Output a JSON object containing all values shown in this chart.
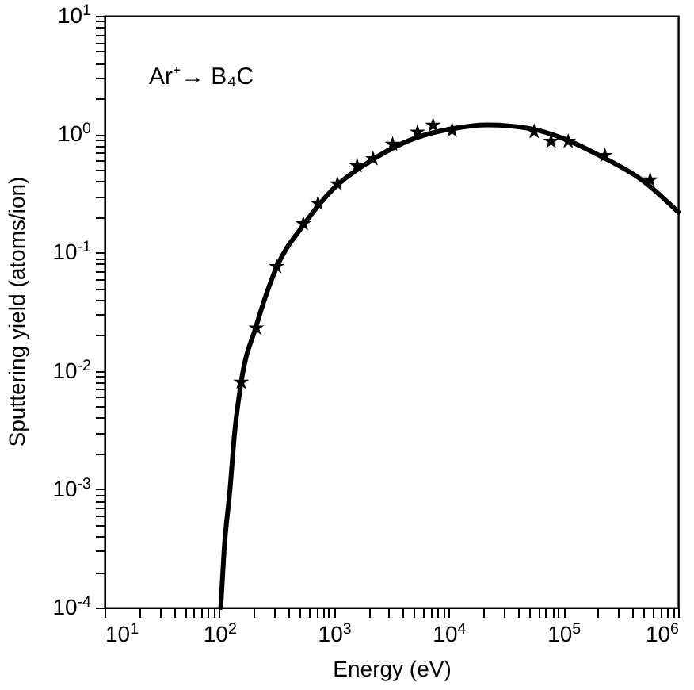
{
  "chart_data": {
    "type": "scatter",
    "xlabel": "Energy (eV)",
    "ylabel": "Sputtering yield (atoms/ion)",
    "annotations": [
      "Ar⁺→ B₄C"
    ],
    "log": "xy",
    "grid": false,
    "xlim": [
      10,
      1000000
    ],
    "ylim": [
      0.0001,
      10
    ],
    "xticks": [
      {
        "value": 10,
        "label": "10$^{1}$"
      },
      {
        "value": 20,
        "label": null
      },
      {
        "value": 30,
        "label": null
      },
      {
        "value": 40,
        "label": null
      },
      {
        "value": 50,
        "label": null
      },
      {
        "value": 60,
        "label": null
      },
      {
        "value": 70,
        "label": null
      },
      {
        "value": 80,
        "label": null
      },
      {
        "value": 90,
        "label": null
      },
      {
        "value": 100,
        "label": "10$^{2}$"
      },
      {
        "value": 200,
        "label": null
      },
      {
        "value": 300,
        "label": null
      },
      {
        "value": 400,
        "label": null
      },
      {
        "value": 500,
        "label": null
      },
      {
        "value": 600,
        "label": null
      },
      {
        "value": 700,
        "label": null
      },
      {
        "value": 800,
        "label": null
      },
      {
        "value": 900,
        "label": null
      },
      {
        "value": 1000,
        "label": "10$^{3}$"
      },
      {
        "value": 2000,
        "label": null
      },
      {
        "value": 3000,
        "label": null
      },
      {
        "value": 4000,
        "label": null
      },
      {
        "value": 5000,
        "label": null
      },
      {
        "value": 6000,
        "label": null
      },
      {
        "value": 7000,
        "label": null
      },
      {
        "value": 8000,
        "label": null
      },
      {
        "value": 9000,
        "label": null
      },
      {
        "value": 10000,
        "label": "10$^{4}$"
      },
      {
        "value": 20000,
        "label": null
      },
      {
        "value": 30000,
        "label": null
      },
      {
        "value": 40000,
        "label": null
      },
      {
        "value": 50000,
        "label": null
      },
      {
        "value": 60000,
        "label": null
      },
      {
        "value": 70000,
        "label": null
      },
      {
        "value": 80000,
        "label": null
      },
      {
        "value": 90000,
        "label": null
      },
      {
        "value": 100000,
        "label": "10$^{5}$"
      },
      {
        "value": 200000,
        "label": null
      },
      {
        "value": 300000,
        "label": null
      },
      {
        "value": 400000,
        "label": null
      },
      {
        "value": 500000,
        "label": null
      },
      {
        "value": 600000,
        "label": null
      },
      {
        "value": 700000,
        "label": null
      },
      {
        "value": 800000,
        "label": null
      },
      {
        "value": 900000,
        "label": null
      },
      {
        "value": 1000000,
        "label": "10$^{6}$"
      }
    ],
    "yticks": [
      {
        "value": 0.0001,
        "label": "10$^{-4}$"
      },
      {
        "value": 0.0002,
        "label": null
      },
      {
        "value": 0.0003,
        "label": null
      },
      {
        "value": 0.0004,
        "label": null
      },
      {
        "value": 0.0005,
        "label": null
      },
      {
        "value": 0.0006,
        "label": null
      },
      {
        "value": 0.0007,
        "label": null
      },
      {
        "value": 0.0008,
        "label": null
      },
      {
        "value": 0.0009,
        "label": null
      },
      {
        "value": 0.001,
        "label": "10$^{-3}$"
      },
      {
        "value": 0.002,
        "label": null
      },
      {
        "value": 0.003,
        "label": null
      },
      {
        "value": 0.004,
        "label": null
      },
      {
        "value": 0.005,
        "label": null
      },
      {
        "value": 0.006,
        "label": null
      },
      {
        "value": 0.007,
        "label": null
      },
      {
        "value": 0.008,
        "label": null
      },
      {
        "value": 0.009,
        "label": null
      },
      {
        "value": 0.01,
        "label": "10$^{-2}$"
      },
      {
        "value": 0.02,
        "label": null
      },
      {
        "value": 0.03,
        "label": null
      },
      {
        "value": 0.04,
        "label": null
      },
      {
        "value": 0.05,
        "label": null
      },
      {
        "value": 0.06,
        "label": null
      },
      {
        "value": 0.07,
        "label": null
      },
      {
        "value": 0.08,
        "label": null
      },
      {
        "value": 0.09,
        "label": null
      },
      {
        "value": 0.1,
        "label": "10$^{-1}$"
      },
      {
        "value": 0.2,
        "label": null
      },
      {
        "value": 0.3,
        "label": null
      },
      {
        "value": 0.4,
        "label": null
      },
      {
        "value": 0.5,
        "label": null
      },
      {
        "value": 0.6,
        "label": null
      },
      {
        "value": 0.7,
        "label": null
      },
      {
        "value": 0.8,
        "label": null
      },
      {
        "value": 0.9,
        "label": null
      },
      {
        "value": 1,
        "label": "10$^{0}$"
      },
      {
        "value": 2,
        "label": null
      },
      {
        "value": 3,
        "label": null
      },
      {
        "value": 4,
        "label": null
      },
      {
        "value": 5,
        "label": null
      },
      {
        "value": 6,
        "label": null
      },
      {
        "value": 7,
        "label": null
      },
      {
        "value": 8,
        "label": null
      },
      {
        "value": 9,
        "label": null
      },
      {
        "value": 10,
        "label": "10$^{1}$"
      }
    ],
    "series": [
      {
        "type": "line",
        "color": "#000000",
        "marker": "none",
        "line_style": "solid",
        "x": [
          103,
          110,
          124,
          136,
          155,
          210,
          316,
          540,
          1000,
          2000,
          5000,
          10000,
          22000,
          50000,
          100000,
          200000,
          500000,
          1000000
        ],
        "values": [
          0.0001,
          0.0003,
          0.001,
          0.003,
          0.008,
          0.024,
          0.075,
          0.17,
          0.35,
          0.58,
          0.92,
          1.1,
          1.2,
          1.12,
          0.92,
          0.67,
          0.4,
          0.22
        ]
      },
      {
        "color": "#000000",
        "marker": "star",
        "x": [
          155,
          210,
          316,
          540,
          725,
          1070,
          1590,
          2190,
          3240,
          5340,
          7300,
          10700,
          55500,
          78000,
          110000,
          230000,
          570000
        ],
        "values": [
          0.008,
          0.023,
          0.076,
          0.175,
          0.26,
          0.38,
          0.54,
          0.62,
          0.82,
          1.04,
          1.19,
          1.08,
          1.05,
          0.87,
          0.87,
          0.66,
          0.41
        ]
      }
    ]
  }
}
